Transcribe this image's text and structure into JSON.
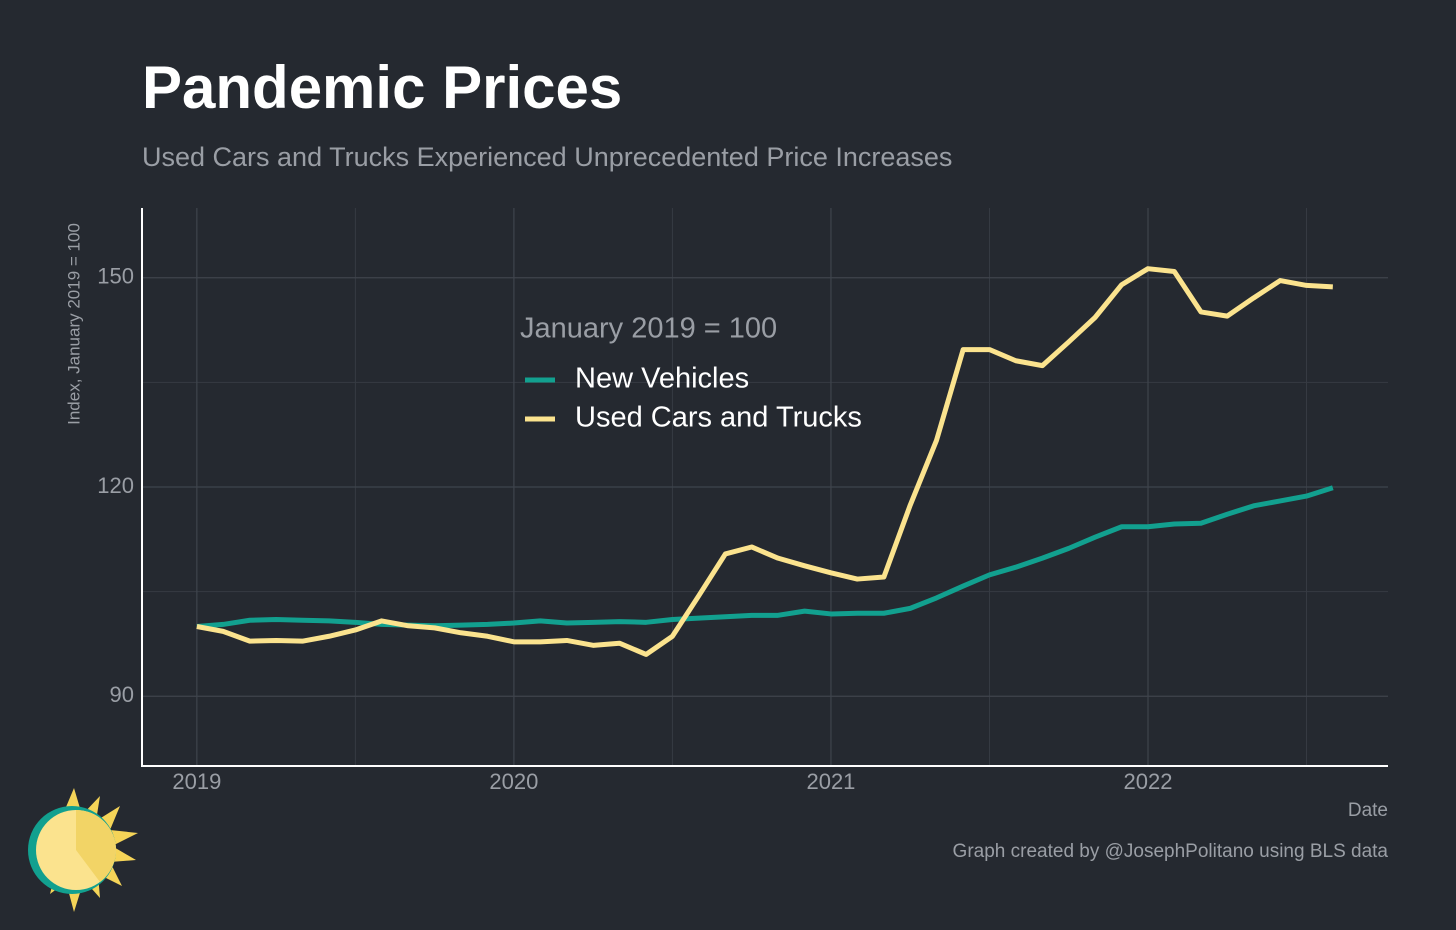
{
  "chart_data": {
    "type": "line",
    "title": "Pandemic Prices",
    "subtitle": "Used Cars and Trucks Experienced Unprecedented Price Increases",
    "y_label": "Index, January 2019 = 100",
    "x_label": "Date",
    "legend_title": "January 2019 = 100",
    "caption": "Graph created by @JosephPolitano using BLS data",
    "x": [
      2019,
      2019.083,
      2019.167,
      2019.25,
      2019.333,
      2019.417,
      2019.5,
      2019.583,
      2019.667,
      2019.75,
      2019.833,
      2019.917,
      2020,
      2020.083,
      2020.167,
      2020.25,
      2020.333,
      2020.417,
      2020.5,
      2020.583,
      2020.667,
      2020.75,
      2020.833,
      2020.917,
      2021,
      2021.083,
      2021.167,
      2021.25,
      2021.333,
      2021.417,
      2021.5,
      2021.583,
      2021.667,
      2021.75,
      2021.833,
      2021.917,
      2022,
      2022.083,
      2022.167,
      2022.25,
      2022.333,
      2022.417,
      2022.5,
      2022.583
    ],
    "series": [
      {
        "name": "New Vehicles",
        "color": "#12a08f",
        "values": [
          100,
          100.3,
          100.9,
          101.0,
          100.9,
          100.8,
          100.6,
          100.3,
          100.2,
          100.1,
          100.2,
          100.3,
          100.5,
          100.8,
          100.5,
          100.6,
          100.7,
          100.6,
          101.0,
          101.2,
          101.4,
          101.6,
          101.6,
          102.2,
          101.8,
          101.9,
          101.9,
          102.6,
          104.1,
          105.8,
          107.4,
          108.5,
          109.8,
          111.2,
          112.8,
          114.3,
          114.3,
          114.7,
          114.8,
          116.1,
          117.3,
          118.0,
          118.7,
          119.9
        ]
      },
      {
        "name": "Used Cars and Trucks",
        "color": "#fbe38e",
        "values": [
          100,
          99.3,
          97.9,
          98.0,
          97.9,
          98.6,
          99.5,
          100.8,
          100.1,
          99.8,
          99.1,
          98.6,
          97.8,
          97.8,
          98.0,
          97.3,
          97.6,
          96.0,
          98.6,
          104.4,
          110.4,
          111.4,
          109.8,
          108.7,
          107.7,
          106.8,
          107.1,
          117.4,
          126.7,
          139.7,
          139.7,
          138.1,
          137.4,
          140.8,
          144.3,
          149.0,
          151.3,
          150.9,
          145.1,
          144.5,
          147.1,
          149.6,
          148.9,
          148.7
        ]
      }
    ],
    "xlim": [
      2018.827,
      2022.757
    ],
    "xticks": [
      2019,
      2020,
      2021,
      2022
    ],
    "xticks_minor": [
      2019.5,
      2020.5,
      2021.5,
      2022.5
    ],
    "ylim": [
      80,
      160
    ],
    "yticks": [
      90,
      120,
      150
    ],
    "yticks_minor": [
      105,
      135
    ],
    "grid": true
  }
}
